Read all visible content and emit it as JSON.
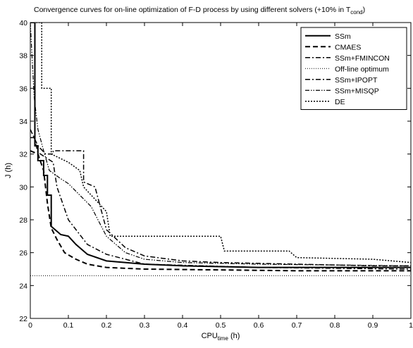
{
  "chart_data": {
    "type": "line",
    "title": "Convergence curves for on-line optimization of F-D process by using different solvers (+10% in T",
    "title_subscript": "cond",
    "xlabel": "CPU",
    "xlabel_subscript": "time",
    "xlabel_unit": " (h)",
    "ylabel": "J (h)",
    "xlim": [
      0,
      1
    ],
    "ylim": [
      22,
      40
    ],
    "x_ticks": [
      "0",
      "0.1",
      "0.2",
      "0.3",
      "0.4",
      "0.5",
      "0.6",
      "0.7",
      "0.8",
      "0.9",
      "1"
    ],
    "y_ticks": [
      "22",
      "24",
      "26",
      "28",
      "30",
      "32",
      "34",
      "36",
      "38",
      "40"
    ],
    "grid": false,
    "legend_position": "top-right",
    "series": [
      {
        "name": "SSm",
        "style": "solid",
        "points": [
          [
            0,
            40
          ],
          [
            0.012,
            40
          ],
          [
            0.012,
            32.5
          ],
          [
            0.02,
            32.5
          ],
          [
            0.02,
            31.6
          ],
          [
            0.035,
            31.6
          ],
          [
            0.035,
            30.7
          ],
          [
            0.045,
            30.7
          ],
          [
            0.045,
            29.5
          ],
          [
            0.055,
            29.5
          ],
          [
            0.055,
            27.6
          ],
          [
            0.065,
            27.4
          ],
          [
            0.08,
            27.1
          ],
          [
            0.1,
            27.0
          ],
          [
            0.12,
            26.5
          ],
          [
            0.15,
            25.9
          ],
          [
            0.2,
            25.5
          ],
          [
            0.3,
            25.3
          ],
          [
            0.4,
            25.2
          ],
          [
            0.6,
            25.1
          ],
          [
            0.8,
            25.1
          ],
          [
            1.0,
            25.1
          ]
        ]
      },
      {
        "name": "CMAES",
        "style": "dashed",
        "points": [
          [
            0,
            32.2
          ],
          [
            0.02,
            32.0
          ],
          [
            0.035,
            31.0
          ],
          [
            0.045,
            29.0
          ],
          [
            0.055,
            27.5
          ],
          [
            0.07,
            26.8
          ],
          [
            0.09,
            26.0
          ],
          [
            0.12,
            25.6
          ],
          [
            0.15,
            25.3
          ],
          [
            0.2,
            25.1
          ],
          [
            0.3,
            25.0
          ],
          [
            0.5,
            24.95
          ],
          [
            0.7,
            24.9
          ],
          [
            1.0,
            24.9
          ]
        ]
      },
      {
        "name": "SSm+FMINCON",
        "style": "dashdot",
        "points": [
          [
            0,
            33.0
          ],
          [
            0.01,
            33.0
          ],
          [
            0.02,
            32.1
          ],
          [
            0.04,
            31.8
          ],
          [
            0.06,
            31.5
          ],
          [
            0.07,
            30.0
          ],
          [
            0.085,
            29.0
          ],
          [
            0.1,
            28.0
          ],
          [
            0.12,
            27.4
          ],
          [
            0.15,
            26.5
          ],
          [
            0.2,
            25.9
          ],
          [
            0.25,
            25.6
          ],
          [
            0.3,
            25.3
          ],
          [
            0.45,
            25.2
          ],
          [
            0.6,
            25.1
          ],
          [
            1.0,
            25.0
          ]
        ]
      },
      {
        "name": "Off-line optimum",
        "style": "dotted",
        "points": [
          [
            0,
            24.6
          ],
          [
            1.0,
            24.6
          ]
        ]
      },
      {
        "name": "SSm+IPOPT",
        "style": "dashdot",
        "points": [
          [
            0,
            33.5
          ],
          [
            0.02,
            32.5
          ],
          [
            0.04,
            32.0
          ],
          [
            0.06,
            32.0
          ],
          [
            0.06,
            32.2
          ],
          [
            0.09,
            32.2
          ],
          [
            0.14,
            32.2
          ],
          [
            0.14,
            30.3
          ],
          [
            0.17,
            30.0
          ],
          [
            0.2,
            27.4
          ],
          [
            0.25,
            26.3
          ],
          [
            0.3,
            25.8
          ],
          [
            0.4,
            25.5
          ],
          [
            0.5,
            25.4
          ],
          [
            0.7,
            25.3
          ],
          [
            0.9,
            25.2
          ],
          [
            1.0,
            25.2
          ]
        ]
      },
      {
        "name": "SSm+MISQP",
        "style": "dashdotdot",
        "points": [
          [
            0,
            40
          ],
          [
            0.01,
            35.5
          ],
          [
            0.02,
            33.5
          ],
          [
            0.035,
            32.2
          ],
          [
            0.05,
            31.0
          ],
          [
            0.08,
            30.5
          ],
          [
            0.1,
            30.2
          ],
          [
            0.13,
            29.5
          ],
          [
            0.16,
            28.8
          ],
          [
            0.2,
            27.0
          ],
          [
            0.25,
            26.0
          ],
          [
            0.3,
            25.6
          ],
          [
            0.4,
            25.4
          ],
          [
            0.6,
            25.3
          ],
          [
            1.0,
            25.2
          ]
        ]
      },
      {
        "name": "DE",
        "style": "densedot",
        "points": [
          [
            0,
            40
          ],
          [
            0.03,
            40
          ],
          [
            0.03,
            36.0
          ],
          [
            0.055,
            36.0
          ],
          [
            0.055,
            32.0
          ],
          [
            0.1,
            31.5
          ],
          [
            0.13,
            31.0
          ],
          [
            0.14,
            30.0
          ],
          [
            0.16,
            29.5
          ],
          [
            0.2,
            28.5
          ],
          [
            0.21,
            27.0
          ],
          [
            0.3,
            27.0
          ],
          [
            0.5,
            27.0
          ],
          [
            0.51,
            26.1
          ],
          [
            0.68,
            26.1
          ],
          [
            0.7,
            25.7
          ],
          [
            0.9,
            25.6
          ],
          [
            1.0,
            25.4
          ]
        ]
      }
    ]
  }
}
